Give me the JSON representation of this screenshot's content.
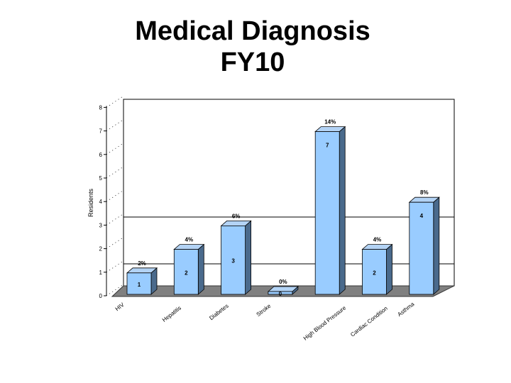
{
  "title": {
    "line1": "Medical Diagnosis",
    "line2": "FY10"
  },
  "chart_data": {
    "type": "bar",
    "ylabel": "Residents",
    "xlabel": "",
    "ylim": [
      0,
      8
    ],
    "yticks": [
      "0",
      "1",
      "2",
      "3",
      "4",
      "5",
      "6",
      "7",
      "8"
    ],
    "grid": "major lines at 1 and 3 on back wall",
    "categories": [
      "HIV",
      "Hepatitis",
      "Diabetes",
      "Stroke",
      "High Blood Pressure",
      "Cardiac Condition",
      "Asthma"
    ],
    "values": [
      1,
      2,
      3,
      0,
      7,
      2,
      4
    ],
    "value_labels": [
      "1",
      "2",
      "3",
      "0",
      "7",
      "2",
      "4"
    ],
    "percent_labels": [
      "2%",
      "4%",
      "6%",
      "0%",
      "14%",
      "4%",
      "8%"
    ],
    "bar_color": "#99ccff",
    "bar_side_color": "#4a6a8c",
    "floor_color": "#808080"
  }
}
